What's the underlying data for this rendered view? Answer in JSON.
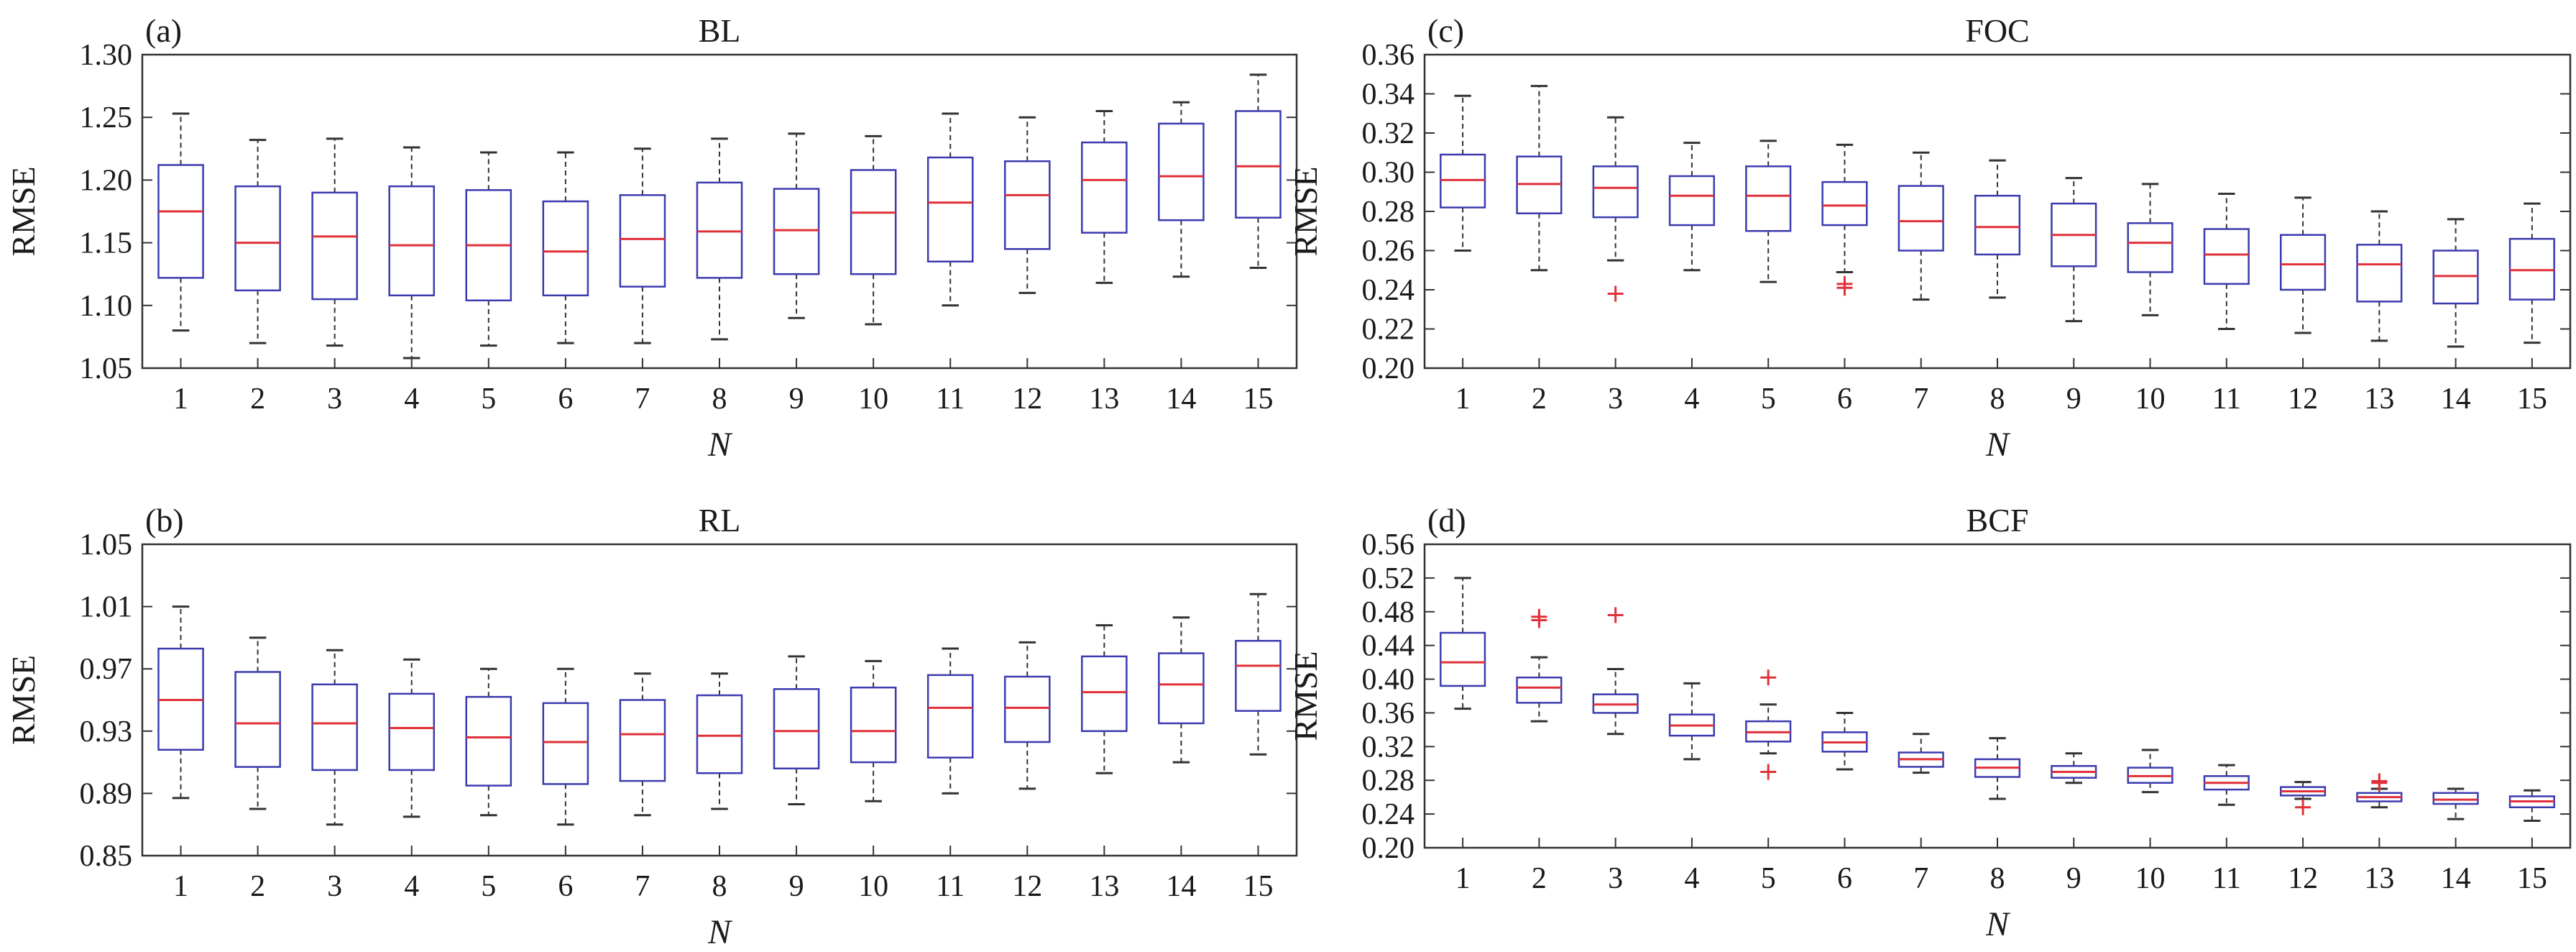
{
  "colors": {
    "box": "#3b3bb0",
    "median": "#e0303a",
    "whisker": "#333333",
    "outlier": "#e0303a",
    "axis": "#333333"
  },
  "chart_data": [
    {
      "type": "box",
      "panel_label": "(a)",
      "title": "BL",
      "xlabel": "N",
      "ylabel": "RMSE",
      "ylim": [
        1.05,
        1.3
      ],
      "yticks": [
        "1.05",
        "1.10",
        "1.15",
        "1.20",
        "1.25",
        "1.30"
      ],
      "categories": [
        "1",
        "2",
        "3",
        "4",
        "5",
        "6",
        "7",
        "8",
        "9",
        "10",
        "11",
        "12",
        "13",
        "14",
        "15"
      ],
      "boxes": [
        {
          "min": 1.08,
          "q1": 1.122,
          "median": 1.175,
          "q3": 1.212,
          "max": 1.253,
          "outliers": []
        },
        {
          "min": 1.07,
          "q1": 1.112,
          "median": 1.15,
          "q3": 1.195,
          "max": 1.232,
          "outliers": []
        },
        {
          "min": 1.068,
          "q1": 1.105,
          "median": 1.155,
          "q3": 1.19,
          "max": 1.233,
          "outliers": []
        },
        {
          "min": 1.058,
          "q1": 1.108,
          "median": 1.148,
          "q3": 1.195,
          "max": 1.226,
          "outliers": []
        },
        {
          "min": 1.068,
          "q1": 1.104,
          "median": 1.148,
          "q3": 1.192,
          "max": 1.222,
          "outliers": []
        },
        {
          "min": 1.07,
          "q1": 1.108,
          "median": 1.143,
          "q3": 1.183,
          "max": 1.222,
          "outliers": []
        },
        {
          "min": 1.07,
          "q1": 1.115,
          "median": 1.153,
          "q3": 1.188,
          "max": 1.225,
          "outliers": []
        },
        {
          "min": 1.073,
          "q1": 1.122,
          "median": 1.159,
          "q3": 1.198,
          "max": 1.233,
          "outliers": []
        },
        {
          "min": 1.09,
          "q1": 1.125,
          "median": 1.16,
          "q3": 1.193,
          "max": 1.237,
          "outliers": []
        },
        {
          "min": 1.085,
          "q1": 1.125,
          "median": 1.174,
          "q3": 1.208,
          "max": 1.235,
          "outliers": []
        },
        {
          "min": 1.1,
          "q1": 1.135,
          "median": 1.182,
          "q3": 1.218,
          "max": 1.253,
          "outliers": []
        },
        {
          "min": 1.11,
          "q1": 1.145,
          "median": 1.188,
          "q3": 1.215,
          "max": 1.25,
          "outliers": []
        },
        {
          "min": 1.118,
          "q1": 1.158,
          "median": 1.2,
          "q3": 1.23,
          "max": 1.255,
          "outliers": []
        },
        {
          "min": 1.123,
          "q1": 1.168,
          "median": 1.203,
          "q3": 1.245,
          "max": 1.262,
          "outliers": []
        },
        {
          "min": 1.13,
          "q1": 1.17,
          "median": 1.211,
          "q3": 1.255,
          "max": 1.284,
          "outliers": []
        }
      ]
    },
    {
      "type": "box",
      "panel_label": "(b)",
      "title": "RL",
      "xlabel": "N",
      "ylabel": "RMSE",
      "ylim": [
        0.85,
        1.05
      ],
      "yticks": [
        "0.85",
        "0.89",
        "0.93",
        "0.97",
        "1.01",
        "1.05"
      ],
      "categories": [
        "1",
        "2",
        "3",
        "4",
        "5",
        "6",
        "7",
        "8",
        "9",
        "10",
        "11",
        "12",
        "13",
        "14",
        "15"
      ],
      "boxes": [
        {
          "min": 0.887,
          "q1": 0.918,
          "median": 0.95,
          "q3": 0.983,
          "max": 1.01,
          "outliers": []
        },
        {
          "min": 0.88,
          "q1": 0.907,
          "median": 0.935,
          "q3": 0.968,
          "max": 0.99,
          "outliers": []
        },
        {
          "min": 0.87,
          "q1": 0.905,
          "median": 0.935,
          "q3": 0.96,
          "max": 0.982,
          "outliers": []
        },
        {
          "min": 0.875,
          "q1": 0.905,
          "median": 0.932,
          "q3": 0.954,
          "max": 0.976,
          "outliers": []
        },
        {
          "min": 0.876,
          "q1": 0.895,
          "median": 0.926,
          "q3": 0.952,
          "max": 0.97,
          "outliers": []
        },
        {
          "min": 0.87,
          "q1": 0.896,
          "median": 0.923,
          "q3": 0.948,
          "max": 0.97,
          "outliers": []
        },
        {
          "min": 0.876,
          "q1": 0.898,
          "median": 0.928,
          "q3": 0.95,
          "max": 0.967,
          "outliers": []
        },
        {
          "min": 0.88,
          "q1": 0.903,
          "median": 0.927,
          "q3": 0.953,
          "max": 0.967,
          "outliers": []
        },
        {
          "min": 0.883,
          "q1": 0.906,
          "median": 0.93,
          "q3": 0.957,
          "max": 0.978,
          "outliers": []
        },
        {
          "min": 0.885,
          "q1": 0.91,
          "median": 0.93,
          "q3": 0.958,
          "max": 0.975,
          "outliers": []
        },
        {
          "min": 0.89,
          "q1": 0.913,
          "median": 0.945,
          "q3": 0.966,
          "max": 0.983,
          "outliers": []
        },
        {
          "min": 0.893,
          "q1": 0.923,
          "median": 0.945,
          "q3": 0.965,
          "max": 0.987,
          "outliers": []
        },
        {
          "min": 0.903,
          "q1": 0.93,
          "median": 0.955,
          "q3": 0.978,
          "max": 0.998,
          "outliers": []
        },
        {
          "min": 0.91,
          "q1": 0.935,
          "median": 0.96,
          "q3": 0.98,
          "max": 1.003,
          "outliers": []
        },
        {
          "min": 0.915,
          "q1": 0.943,
          "median": 0.972,
          "q3": 0.988,
          "max": 1.018,
          "outliers": []
        }
      ]
    },
    {
      "type": "box",
      "panel_label": "(c)",
      "title": "FOC",
      "xlabel": "N",
      "ylabel": "RMSE",
      "ylim": [
        0.2,
        0.36
      ],
      "yticks": [
        "0.20",
        "0.22",
        "0.24",
        "0.26",
        "0.28",
        "0.30",
        "0.32",
        "0.34",
        "0.36"
      ],
      "categories": [
        "1",
        "2",
        "3",
        "4",
        "5",
        "6",
        "7",
        "8",
        "9",
        "10",
        "11",
        "12",
        "13",
        "14",
        "15"
      ],
      "boxes": [
        {
          "min": 0.26,
          "q1": 0.282,
          "median": 0.296,
          "q3": 0.309,
          "max": 0.339,
          "outliers": []
        },
        {
          "min": 0.25,
          "q1": 0.279,
          "median": 0.294,
          "q3": 0.308,
          "max": 0.344,
          "outliers": []
        },
        {
          "min": 0.255,
          "q1": 0.277,
          "median": 0.292,
          "q3": 0.303,
          "max": 0.328,
          "outliers": [
            0.238
          ]
        },
        {
          "min": 0.25,
          "q1": 0.273,
          "median": 0.288,
          "q3": 0.298,
          "max": 0.315,
          "outliers": []
        },
        {
          "min": 0.244,
          "q1": 0.27,
          "median": 0.288,
          "q3": 0.303,
          "max": 0.316,
          "outliers": []
        },
        {
          "min": 0.249,
          "q1": 0.273,
          "median": 0.283,
          "q3": 0.295,
          "max": 0.314,
          "outliers": [
            0.241,
            0.243
          ]
        },
        {
          "min": 0.235,
          "q1": 0.26,
          "median": 0.275,
          "q3": 0.293,
          "max": 0.31,
          "outliers": []
        },
        {
          "min": 0.236,
          "q1": 0.258,
          "median": 0.272,
          "q3": 0.288,
          "max": 0.306,
          "outliers": []
        },
        {
          "min": 0.224,
          "q1": 0.252,
          "median": 0.268,
          "q3": 0.284,
          "max": 0.297,
          "outliers": []
        },
        {
          "min": 0.227,
          "q1": 0.249,
          "median": 0.264,
          "q3": 0.274,
          "max": 0.294,
          "outliers": []
        },
        {
          "min": 0.22,
          "q1": 0.243,
          "median": 0.258,
          "q3": 0.271,
          "max": 0.289,
          "outliers": []
        },
        {
          "min": 0.218,
          "q1": 0.24,
          "median": 0.253,
          "q3": 0.268,
          "max": 0.287,
          "outliers": []
        },
        {
          "min": 0.214,
          "q1": 0.234,
          "median": 0.253,
          "q3": 0.263,
          "max": 0.28,
          "outliers": []
        },
        {
          "min": 0.211,
          "q1": 0.233,
          "median": 0.247,
          "q3": 0.26,
          "max": 0.276,
          "outliers": []
        },
        {
          "min": 0.213,
          "q1": 0.235,
          "median": 0.25,
          "q3": 0.266,
          "max": 0.284,
          "outliers": []
        }
      ]
    },
    {
      "type": "box",
      "panel_label": "(d)",
      "title": "BCF",
      "xlabel": "N",
      "ylabel": "RMSE",
      "ylim": [
        0.2,
        0.56
      ],
      "yticks": [
        "0.20",
        "0.24",
        "0.28",
        "0.32",
        "0.36",
        "0.40",
        "0.44",
        "0.48",
        "0.52",
        "0.56"
      ],
      "categories": [
        "1",
        "2",
        "3",
        "4",
        "5",
        "6",
        "7",
        "8",
        "9",
        "10",
        "11",
        "12",
        "13",
        "14",
        "15"
      ],
      "boxes": [
        {
          "min": 0.365,
          "q1": 0.392,
          "median": 0.42,
          "q3": 0.455,
          "max": 0.52,
          "outliers": []
        },
        {
          "min": 0.35,
          "q1": 0.372,
          "median": 0.39,
          "q3": 0.402,
          "max": 0.426,
          "outliers": [
            0.47,
            0.474
          ]
        },
        {
          "min": 0.335,
          "q1": 0.36,
          "median": 0.37,
          "q3": 0.382,
          "max": 0.412,
          "outliers": [
            0.476
          ]
        },
        {
          "min": 0.305,
          "q1": 0.333,
          "median": 0.345,
          "q3": 0.358,
          "max": 0.395,
          "outliers": []
        },
        {
          "min": 0.312,
          "q1": 0.326,
          "median": 0.337,
          "q3": 0.35,
          "max": 0.37,
          "outliers": [
            0.29,
            0.402
          ]
        },
        {
          "min": 0.293,
          "q1": 0.314,
          "median": 0.325,
          "q3": 0.337,
          "max": 0.36,
          "outliers": []
        },
        {
          "min": 0.289,
          "q1": 0.296,
          "median": 0.305,
          "q3": 0.313,
          "max": 0.335,
          "outliers": []
        },
        {
          "min": 0.258,
          "q1": 0.284,
          "median": 0.295,
          "q3": 0.305,
          "max": 0.33,
          "outliers": []
        },
        {
          "min": 0.277,
          "q1": 0.283,
          "median": 0.29,
          "q3": 0.297,
          "max": 0.312,
          "outliers": []
        },
        {
          "min": 0.266,
          "q1": 0.277,
          "median": 0.285,
          "q3": 0.295,
          "max": 0.316,
          "outliers": []
        },
        {
          "min": 0.251,
          "q1": 0.269,
          "median": 0.277,
          "q3": 0.285,
          "max": 0.298,
          "outliers": []
        },
        {
          "min": 0.258,
          "q1": 0.262,
          "median": 0.267,
          "q3": 0.272,
          "max": 0.278,
          "outliers": [
            0.248
          ]
        },
        {
          "min": 0.248,
          "q1": 0.255,
          "median": 0.26,
          "q3": 0.265,
          "max": 0.27,
          "outliers": [
            0.277,
            0.279
          ]
        },
        {
          "min": 0.234,
          "q1": 0.252,
          "median": 0.257,
          "q3": 0.265,
          "max": 0.27,
          "outliers": []
        },
        {
          "min": 0.232,
          "q1": 0.248,
          "median": 0.255,
          "q3": 0.261,
          "max": 0.268,
          "outliers": []
        }
      ]
    }
  ]
}
